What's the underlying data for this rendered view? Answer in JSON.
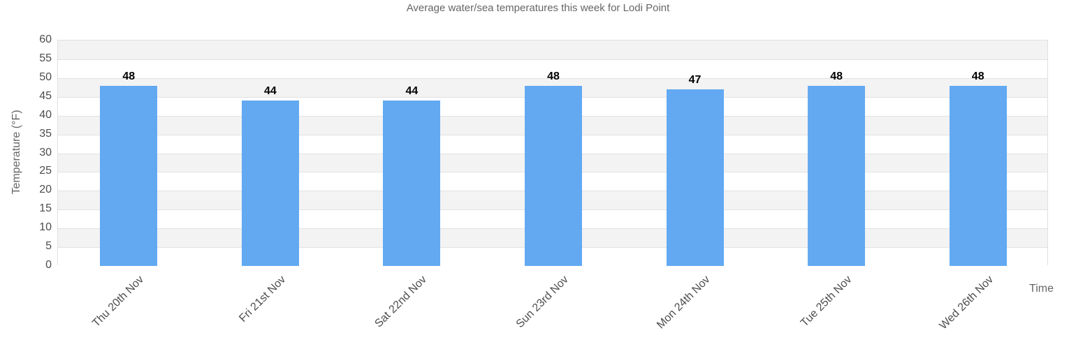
{
  "chart_data": {
    "type": "bar",
    "title": "Average water/sea temperatures this week for Lodi Point",
    "xlabel": "Time",
    "ylabel": "Temperature (°F)",
    "categories": [
      "Thu 20th Nov",
      "Fri 21st Nov",
      "Sat 22nd Nov",
      "Sun 23rd Nov",
      "Mon 24th Nov",
      "Tue 25th Nov",
      "Wed 26th Nov"
    ],
    "values": [
      48,
      44,
      44,
      48,
      47,
      48,
      48
    ],
    "ylim": [
      0,
      60
    ],
    "ytick_step": 5,
    "yticks": [
      0,
      5,
      10,
      15,
      20,
      25,
      30,
      35,
      40,
      45,
      50,
      55,
      60
    ],
    "grid": true,
    "legend": false,
    "x_label_rotation": -45,
    "colors": {
      "bar": "#62a9f2",
      "plot_band_fill": "#f3f3f3",
      "plot_band_alt": "#ffffff",
      "grid": "#e2e2e2",
      "plot_border": "#e0e0e0",
      "title": "#666666",
      "axis_label": "#4d4d4d",
      "axis_title": "#666666",
      "data_label": "#000000",
      "background": "#ffffff"
    }
  }
}
